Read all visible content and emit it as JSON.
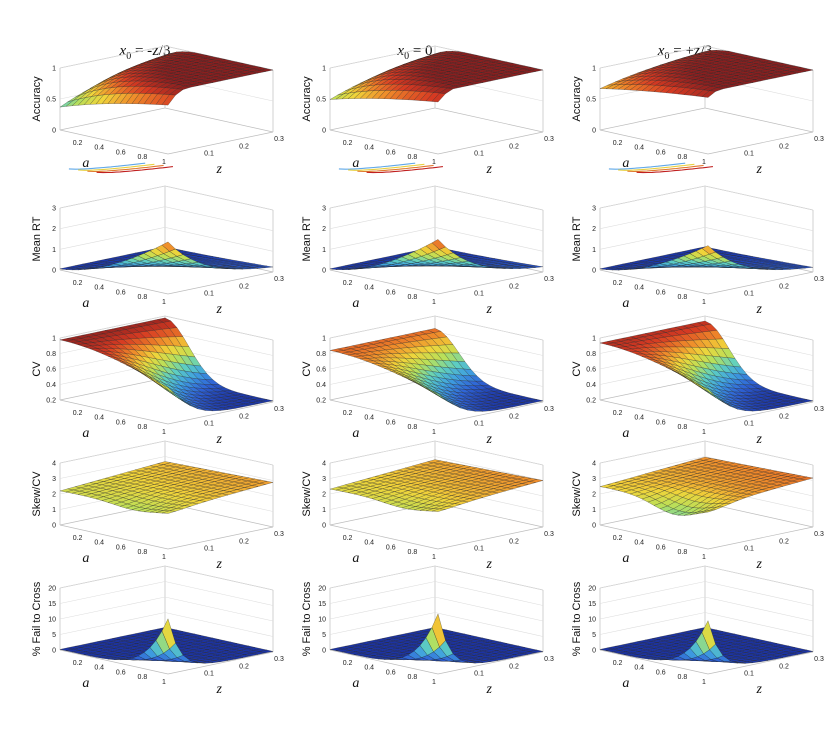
{
  "chart_data": {
    "type": "surface",
    "layout": "5 rows x 3 columns grid of 3D surface plots",
    "columns": [
      {
        "title_var": "x",
        "title_sub": "0",
        "title_rest": " = -z/3",
        "x0_rule": "-z/3"
      },
      {
        "title_var": "x",
        "title_sub": "0",
        "title_rest": " = 0",
        "x0_rule": "0"
      },
      {
        "title_var": "x",
        "title_sub": "0",
        "title_rest": " = +z/3",
        "x0_rule": "+z/3"
      }
    ],
    "x_axis": {
      "label": "a",
      "range": [
        0.1,
        1.0
      ],
      "ticks": [
        "0.2",
        "0.4",
        "0.6",
        "0.8",
        "1"
      ]
    },
    "y_axis": {
      "label": "z",
      "range": [
        0.05,
        0.3
      ],
      "ticks": [
        "0.1",
        "0.2",
        "0.3"
      ]
    },
    "rows": [
      {
        "ylabel": "Accuracy",
        "zlim": [
          0,
          1
        ],
        "zticks": [
          "0",
          "0.5",
          "1"
        ],
        "surface": "accuracy",
        "has_contour": true
      },
      {
        "ylabel": "Mean RT",
        "zlim": [
          0,
          3
        ],
        "zticks": [
          "0",
          "1",
          "2",
          "3"
        ],
        "surface": "meanrt",
        "has_contour": false
      },
      {
        "ylabel": "CV",
        "zlim": [
          0.2,
          1
        ],
        "zticks": [
          "0.2",
          "0.4",
          "0.6",
          "0.8",
          "1"
        ],
        "surface": "cv",
        "has_contour": false
      },
      {
        "ylabel": "Skew/CV",
        "zlim": [
          0,
          4
        ],
        "zticks": [
          "0",
          "1",
          "2",
          "3",
          "4"
        ],
        "surface": "skewcv",
        "has_contour": false
      },
      {
        "ylabel": "% Fail to Cross",
        "zlim": [
          0,
          20
        ],
        "zticks": [
          "0",
          "5",
          "10",
          "15",
          "20"
        ],
        "surface": "fail",
        "has_contour": false
      }
    ],
    "colormap": [
      "#1a2f9e",
      "#2f64d6",
      "#3fa0e0",
      "#5fd0c0",
      "#b8e05a",
      "#f0d43a",
      "#ef8a2a",
      "#d63a22",
      "#8a1f1f"
    ]
  }
}
